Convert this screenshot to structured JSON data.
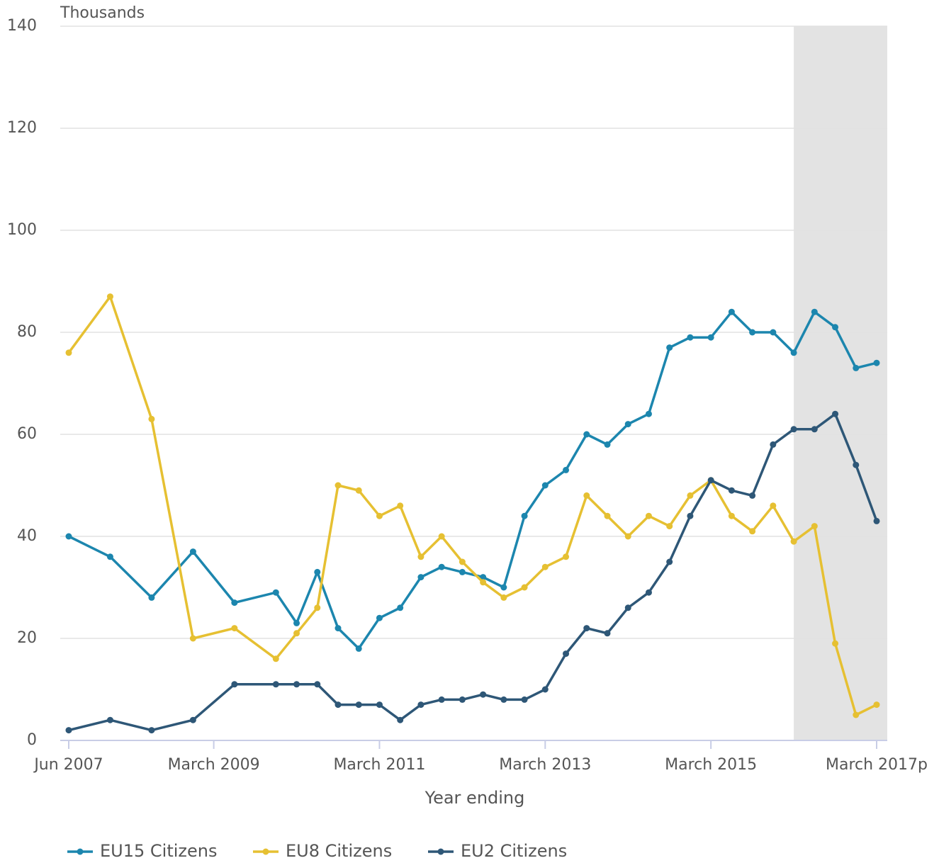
{
  "chart_data": {
    "type": "line",
    "y_label": "Thousands",
    "x_label": "Year ending",
    "categories": [
      "Jun 2007",
      null,
      null,
      null,
      null,
      null,
      null,
      "March 2009",
      null,
      null,
      null,
      null,
      null,
      null,
      null,
      "March 2011",
      null,
      null,
      null,
      null,
      null,
      null,
      null,
      "March 2013",
      null,
      null,
      null,
      null,
      null,
      null,
      null,
      "March 2015",
      null,
      null,
      null,
      null,
      null,
      null,
      null,
      "March 2017p"
    ],
    "series": [
      {
        "name": "EU15 Citizens",
        "color": "#1c86ae",
        "values": [
          40,
          null,
          36,
          null,
          28,
          null,
          37,
          null,
          27,
          null,
          29,
          23,
          33,
          22,
          18,
          24,
          26,
          32,
          34,
          33,
          32,
          30,
          44,
          50,
          53,
          60,
          58,
          62,
          64,
          77,
          79,
          79,
          84,
          80,
          80,
          76,
          84,
          81,
          73,
          74
        ]
      },
      {
        "name": "EU8 Citizens",
        "color": "#e6c032",
        "values": [
          76,
          null,
          87,
          null,
          63,
          null,
          20,
          null,
          22,
          null,
          16,
          21,
          26,
          50,
          49,
          44,
          46,
          36,
          40,
          35,
          31,
          28,
          30,
          34,
          36,
          48,
          44,
          40,
          44,
          42,
          48,
          51,
          44,
          41,
          46,
          39,
          42,
          19,
          5,
          7
        ]
      },
      {
        "name": "EU2 Citizens",
        "color": "#2e5777",
        "values": [
          2,
          null,
          4,
          null,
          2,
          null,
          4,
          null,
          11,
          null,
          11,
          11,
          11,
          7,
          7,
          7,
          4,
          7,
          8,
          8,
          9,
          8,
          8,
          10,
          17,
          22,
          21,
          26,
          29,
          35,
          44,
          51,
          49,
          48,
          58,
          61,
          61,
          64,
          54,
          43
        ]
      }
    ],
    "ylim": [
      0,
      140
    ],
    "yticks": [
      0,
      20,
      40,
      60,
      80,
      100,
      120,
      140
    ],
    "grid": true,
    "legend": "bottom"
  }
}
